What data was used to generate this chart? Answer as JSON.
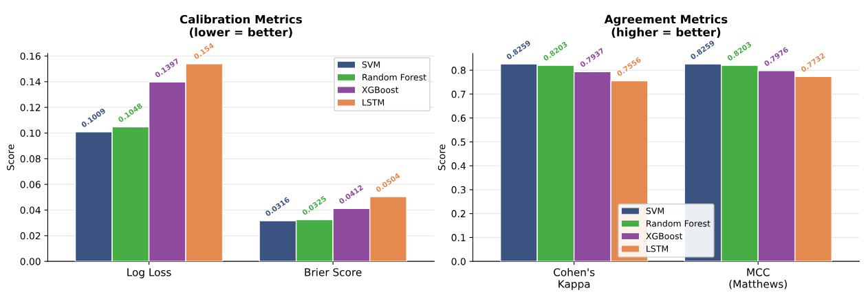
{
  "chart_data": [
    {
      "type": "bar",
      "title": "Calibration Metrics\n(lower = better)",
      "ylabel": "Score",
      "categories": [
        "Log Loss",
        "Brier Score"
      ],
      "ylim": [
        0,
        0.162
      ],
      "yticks": [
        {
          "value": 0,
          "label": "0.00"
        },
        {
          "value": 0.02,
          "label": "0.02"
        },
        {
          "value": 0.04,
          "label": "0.04"
        },
        {
          "value": 0.06,
          "label": "0.06"
        },
        {
          "value": 0.08,
          "label": "0.08"
        },
        {
          "value": 0.1,
          "label": "0.10"
        },
        {
          "value": 0.12,
          "label": "0.12"
        },
        {
          "value": 0.14,
          "label": "0.14"
        },
        {
          "value": 0.16,
          "label": "0.16"
        }
      ],
      "grid": "y",
      "legend": "top right",
      "data_labels": true,
      "series": [
        {
          "name": "SVM",
          "color": "#3a5380",
          "values": [
            0.1009,
            0.0316
          ]
        },
        {
          "name": "Random Forest",
          "color": "#47ad45",
          "values": [
            0.1048,
            0.0325
          ]
        },
        {
          "name": "XGBoost",
          "color": "#8e4a9c",
          "values": [
            0.1397,
            0.0412
          ]
        },
        {
          "name": "LSTM",
          "color": "#e6894e",
          "values": [
            0.154,
            0.0504
          ],
          "value_labels": [
            "0.154",
            "0.0504"
          ]
        }
      ]
    },
    {
      "type": "bar",
      "title": "Agreement Metrics\n(higher = better)",
      "ylabel": "Score",
      "categories": [
        "Cohen's\nKappa",
        "MCC\n(Matthews)"
      ],
      "ylim": [
        0,
        0.87
      ],
      "yticks": [
        {
          "value": 0,
          "label": "0.0"
        },
        0.1,
        0.2,
        0.3,
        0.4,
        0.5,
        0.6,
        0.7,
        0.8
      ],
      "grid": "y",
      "legend": "bottom",
      "data_labels": true,
      "series": [
        {
          "name": "SVM",
          "color": "#3a5380",
          "values": [
            0.8259,
            0.8259
          ]
        },
        {
          "name": "Random Forest",
          "color": "#47ad45",
          "values": [
            0.8203,
            0.8203
          ]
        },
        {
          "name": "XGBoost",
          "color": "#8e4a9c",
          "values": [
            0.7937,
            0.7976
          ]
        },
        {
          "name": "LSTM",
          "color": "#e6894e",
          "values": [
            0.7556,
            0.7732
          ]
        }
      ]
    }
  ]
}
